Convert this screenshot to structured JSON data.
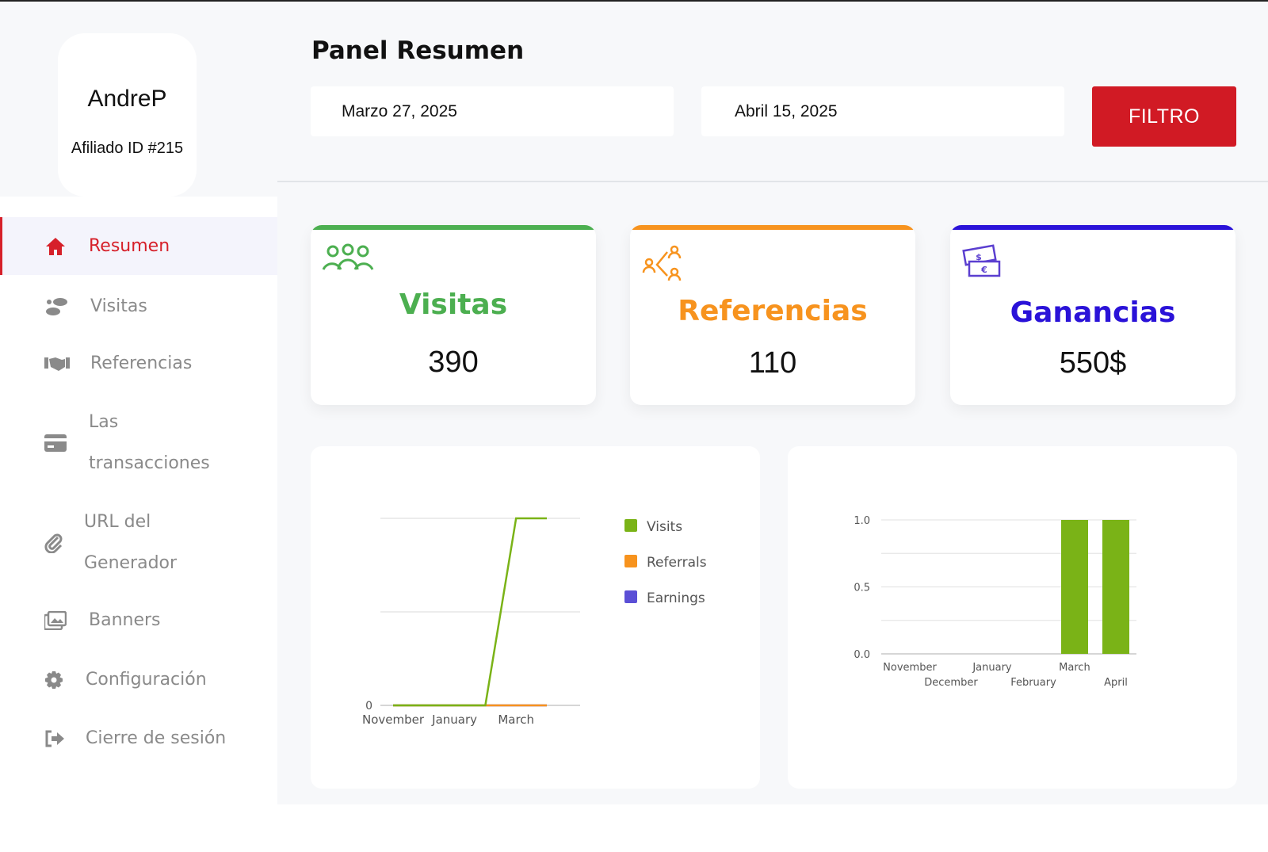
{
  "profile": {
    "username": "AndreP",
    "affiliate_id": "Afiliado ID #215"
  },
  "nav": {
    "items": [
      {
        "label": "Resumen",
        "icon": "home-icon",
        "active": true
      },
      {
        "label": "Visitas",
        "icon": "footprints-icon",
        "active": false
      },
      {
        "label": "Referencias",
        "icon": "handshake-icon",
        "active": false
      },
      {
        "label_line1": "Las",
        "label_line2": "transacciones",
        "icon": "credit-card-icon",
        "active": false
      },
      {
        "label_line1": "URL del",
        "label_line2": "Generador",
        "icon": "paperclip-icon",
        "active": false
      },
      {
        "label": "Banners",
        "icon": "images-icon",
        "active": false
      },
      {
        "label": "Configuración",
        "icon": "gear-icon",
        "active": false
      },
      {
        "label": "Cierre de sesión",
        "icon": "logout-icon",
        "active": false
      }
    ]
  },
  "header": {
    "title": "Panel Resumen",
    "date_from": "Marzo 27, 2025",
    "date_to": "Abril 15, 2025",
    "filter_label": "FILTRO"
  },
  "stats": {
    "visits": {
      "title": "Visitas",
      "value": "390",
      "color": "#4caf50",
      "icon": "users-icon"
    },
    "referrals": {
      "title": "Referencias",
      "value": "110",
      "color": "#f7931e",
      "icon": "referral-network-icon"
    },
    "earnings": {
      "title": "Ganancias",
      "value": "550$",
      "color": "#2a12d8",
      "icon": "money-bills-icon"
    }
  },
  "chart_data": [
    {
      "type": "line",
      "x": [
        "November",
        "December",
        "January",
        "February",
        "March",
        "April"
      ],
      "x_tick_labels": [
        "November",
        "January",
        "March"
      ],
      "y_tick_labels": [
        "0"
      ],
      "legend_position": "right",
      "series": [
        {
          "name": "Visits",
          "color": "#7ab317",
          "values": [
            0,
            0,
            0,
            0,
            1,
            1
          ]
        },
        {
          "name": "Referrals",
          "color": "#f7931e",
          "values": [
            0,
            0,
            0,
            0,
            0,
            0
          ]
        },
        {
          "name": "Earnings",
          "color": "#5b4fd6",
          "values": [
            0,
            0,
            0,
            0,
            0,
            0
          ]
        }
      ],
      "ylim": [
        0,
        1
      ],
      "grid": true
    },
    {
      "type": "bar",
      "categories": [
        "November",
        "December",
        "January",
        "February",
        "March",
        "April"
      ],
      "values": [
        0,
        0,
        0,
        0,
        1.0,
        1.0
      ],
      "color": "#7ab317",
      "y_tick_labels": [
        "0.0",
        "0.5",
        "1.0"
      ],
      "ylim": [
        0,
        1
      ],
      "grid": true
    }
  ]
}
